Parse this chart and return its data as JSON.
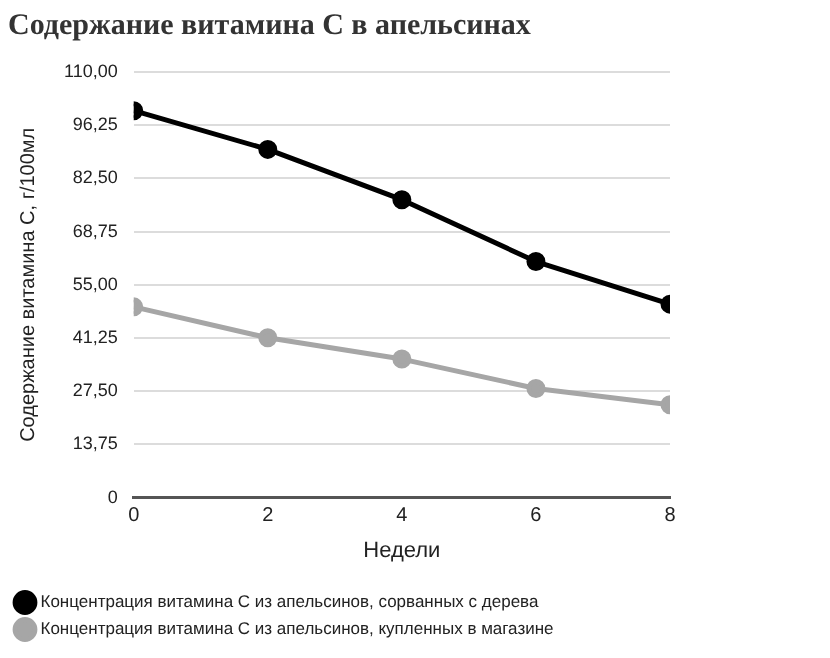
{
  "chart_data": {
    "type": "line",
    "title": "Содержание витамина С в апельсинах",
    "xlabel": "Недели",
    "ylabel": "Содержание витамина С, г/100мл",
    "x": [
      0,
      2,
      4,
      6,
      8
    ],
    "series": [
      {
        "name": "Концентрация витамина С из апельсинов, сорванных с дерева",
        "color": "#000000",
        "values": [
          100,
          90,
          77,
          61,
          50
        ]
      },
      {
        "name": "Концентрация витамина С из апельсинов, купленных в магазине",
        "color": "#a6a6a6",
        "values": [
          49.3,
          41.3,
          35.8,
          28.2,
          24
        ]
      }
    ],
    "xlim": [
      0,
      8
    ],
    "xticks": [
      0,
      2,
      4,
      6,
      8
    ],
    "ylim": [
      0,
      110
    ],
    "yticks": [
      0,
      {
        "value": 13.75,
        "label": "13,75"
      },
      {
        "value": 27.5,
        "label": "27,50"
      },
      {
        "value": 41.25,
        "label": "41,25"
      },
      {
        "value": 55,
        "label": "55,00"
      },
      {
        "value": 68.75,
        "label": "68,75"
      },
      {
        "value": 82.5,
        "label": "82,50"
      },
      {
        "value": 96.25,
        "label": "96,25"
      },
      {
        "value": 110,
        "label": "110,00"
      }
    ],
    "grid": "y",
    "legend": "bottom",
    "marker": "circle",
    "line_style": "solid"
  }
}
